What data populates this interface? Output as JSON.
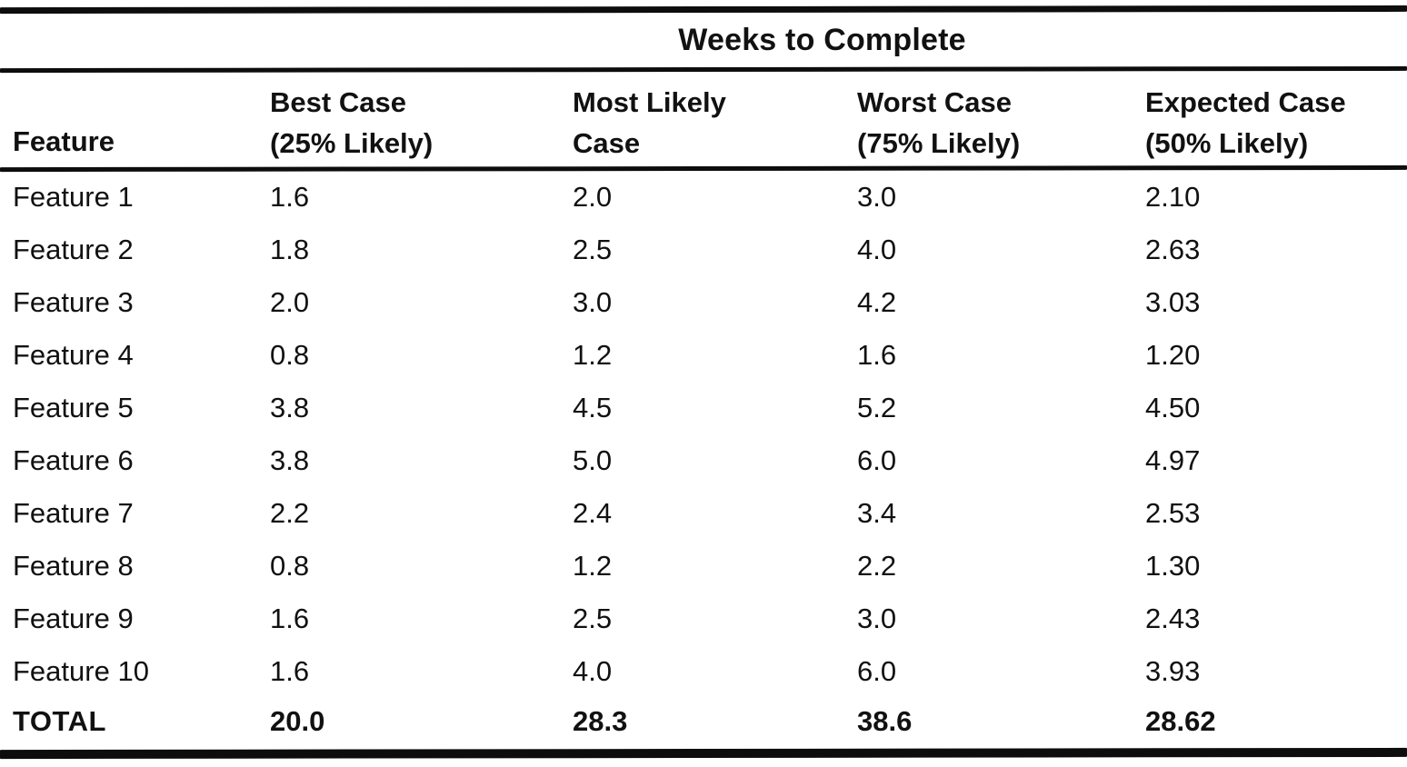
{
  "table": {
    "title": "Weeks to Complete",
    "feature_header": "Feature",
    "columns": [
      {
        "line1": "Best Case",
        "line2": "(25% Likely)"
      },
      {
        "line1": "Most Likely",
        "line2": "Case"
      },
      {
        "line1": "Worst Case",
        "line2": "(75% Likely)"
      },
      {
        "line1": "Expected Case",
        "line2": "(50% Likely)"
      }
    ],
    "rows": [
      {
        "feature": "Feature 1",
        "values": [
          "1.6",
          "2.0",
          "3.0",
          "2.10"
        ]
      },
      {
        "feature": "Feature 2",
        "values": [
          "1.8",
          "2.5",
          "4.0",
          "2.63"
        ]
      },
      {
        "feature": "Feature 3",
        "values": [
          "2.0",
          "3.0",
          "4.2",
          "3.03"
        ]
      },
      {
        "feature": "Feature 4",
        "values": [
          "0.8",
          "1.2",
          "1.6",
          "1.20"
        ]
      },
      {
        "feature": "Feature 5",
        "values": [
          "3.8",
          "4.5",
          "5.2",
          "4.50"
        ]
      },
      {
        "feature": "Feature 6",
        "values": [
          "3.8",
          "5.0",
          "6.0",
          "4.97"
        ]
      },
      {
        "feature": "Feature 7",
        "values": [
          "2.2",
          "2.4",
          "3.4",
          "2.53"
        ]
      },
      {
        "feature": "Feature 8",
        "values": [
          "0.8",
          "1.2",
          "2.2",
          "1.30"
        ]
      },
      {
        "feature": "Feature 9",
        "values": [
          "1.6",
          "2.5",
          "3.0",
          "2.43"
        ]
      },
      {
        "feature": "Feature 10",
        "values": [
          "1.6",
          "4.0",
          "6.0",
          "3.93"
        ]
      }
    ],
    "total_row": {
      "label": "TOTAL",
      "values": [
        "20.0",
        "28.3",
        "38.6",
        "28.62"
      ]
    }
  },
  "colors": {
    "text": "#111111",
    "background": "#ffffff",
    "rule": "#0d0d0d"
  },
  "chart_data": {
    "type": "table",
    "title": "Weeks to Complete",
    "columns": [
      "Feature",
      "Best Case (25% Likely)",
      "Most Likely Case",
      "Worst Case (75% Likely)",
      "Expected Case (50% Likely)"
    ],
    "rows": [
      [
        "Feature 1",
        1.6,
        2.0,
        3.0,
        2.1
      ],
      [
        "Feature 2",
        1.8,
        2.5,
        4.0,
        2.63
      ],
      [
        "Feature 3",
        2.0,
        3.0,
        4.2,
        3.03
      ],
      [
        "Feature 4",
        0.8,
        1.2,
        1.6,
        1.2
      ],
      [
        "Feature 5",
        3.8,
        4.5,
        5.2,
        4.5
      ],
      [
        "Feature 6",
        3.8,
        5.0,
        6.0,
        4.97
      ],
      [
        "Feature 7",
        2.2,
        2.4,
        3.4,
        2.53
      ],
      [
        "Feature 8",
        0.8,
        1.2,
        2.2,
        1.3
      ],
      [
        "Feature 9",
        1.6,
        2.5,
        3.0,
        2.43
      ],
      [
        "Feature 10",
        1.6,
        4.0,
        6.0,
        3.93
      ],
      [
        "TOTAL",
        20.0,
        28.3,
        38.6,
        28.62
      ]
    ]
  }
}
